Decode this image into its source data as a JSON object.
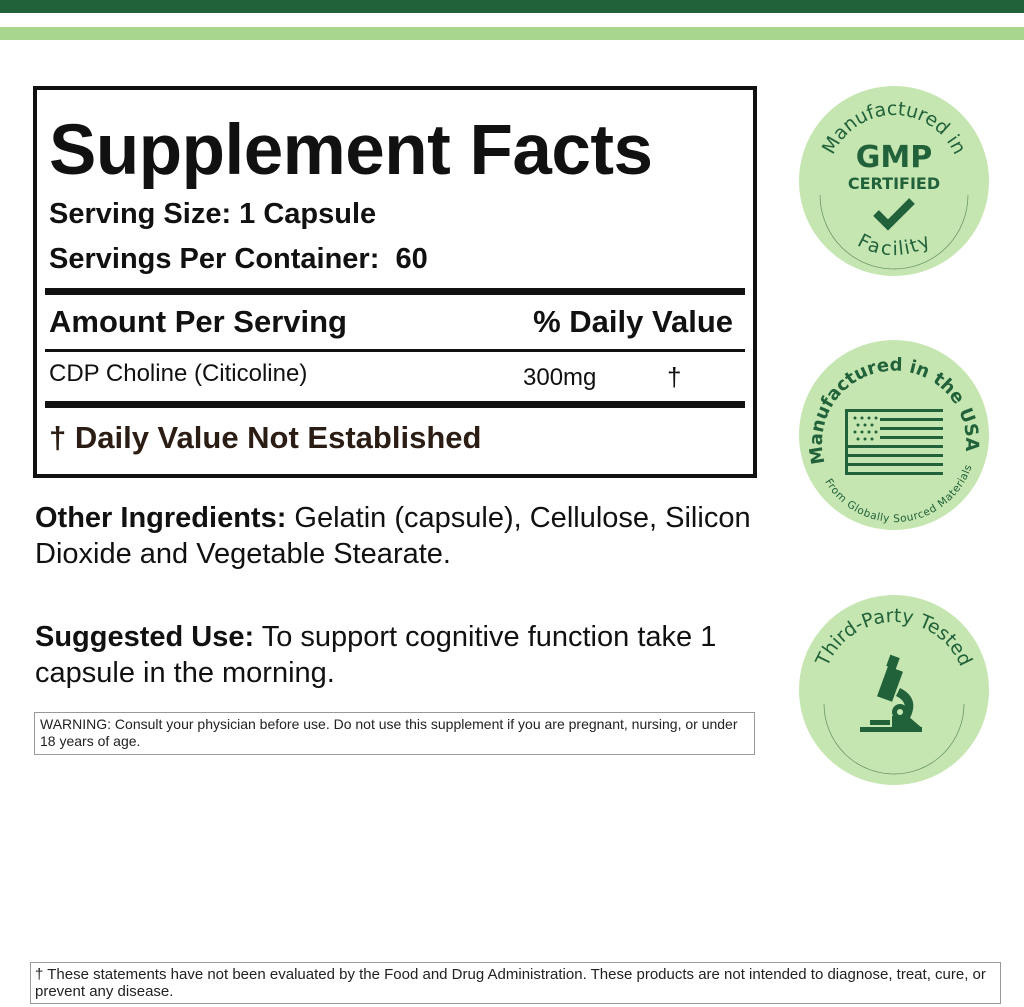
{
  "colors": {
    "dark_green": "#21623b",
    "light_green": "#a8d68f",
    "badge_fill": "#c6e6b1"
  },
  "facts": {
    "title": "Supplement Facts",
    "serving_size": "Serving Size: 1 Capsule",
    "servings_per_container": "Servings Per Container:  60",
    "amount_header": "Amount Per Serving",
    "dv_header": "% Daily Value",
    "rows": [
      {
        "ingredient": "CDP Choline (Citicoline)",
        "amount": "300mg",
        "dv": "†"
      }
    ],
    "footnote": "† Daily Value Not Established"
  },
  "other_ingredients": {
    "label": "Other Ingredients:",
    "text": " Gelatin (capsule), Cellulose, Silicon Dioxide and Vegetable Stearate."
  },
  "suggested_use": {
    "label": "Suggested Use:",
    "text": " To support cognitive function take 1 capsule in the morning."
  },
  "warning": "WARNING: Consult your physician before use. Do not use this supplement if you are pregnant, nursing, or under 18 years of age.",
  "disclaimer": "† These statements have not been evaluated by the Food and Drug Administration. These products are not intended to diagnose, treat, cure, or prevent any disease.",
  "badges": {
    "gmp": {
      "top": "Manufactured in",
      "line1": "GMP",
      "line2": "CERTIFIED",
      "bottom": "Facility",
      "icon": "checkmark-icon"
    },
    "usa": {
      "top": "Manufactured in the USA",
      "bottom": "From Globally Sourced Materials",
      "icon": "us-flag-icon"
    },
    "third": {
      "top": "Third-Party Tested",
      "icon": "microscope-icon"
    }
  }
}
